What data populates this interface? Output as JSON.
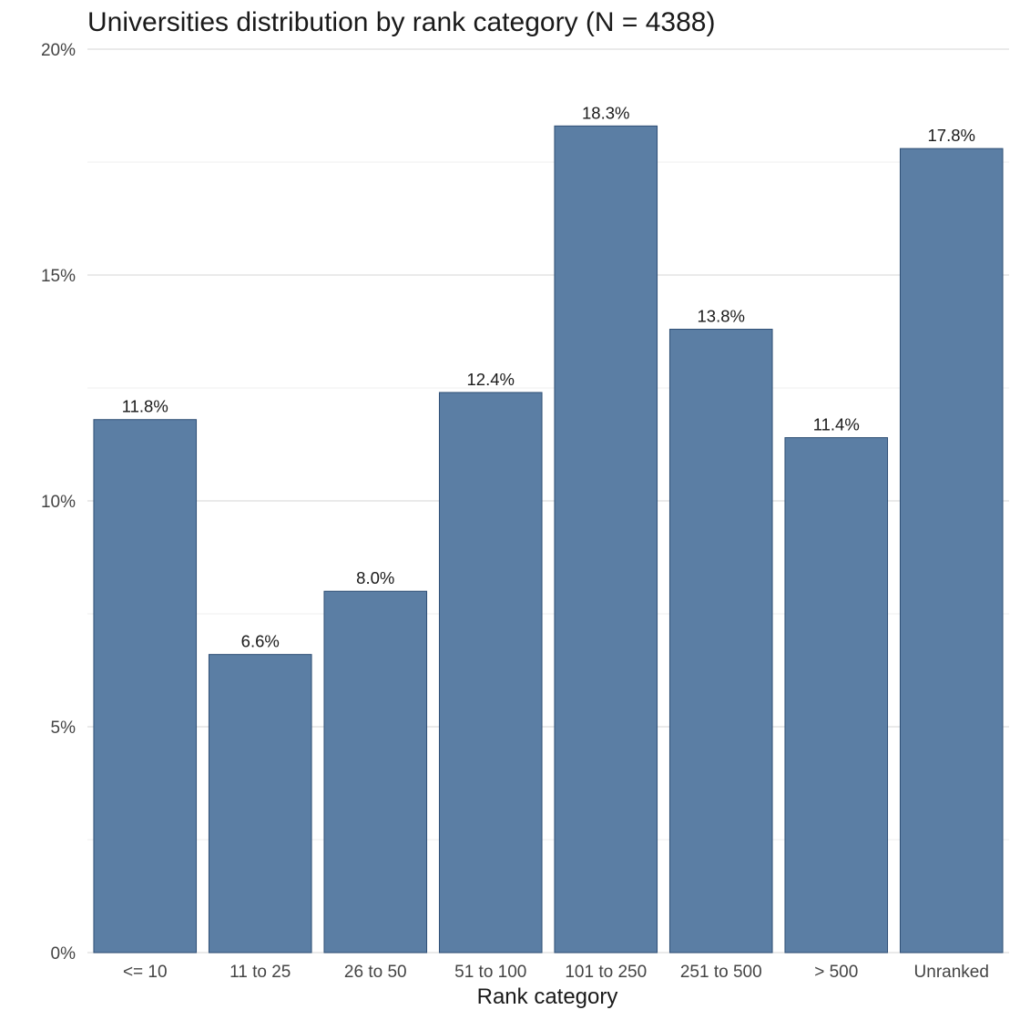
{
  "chart_data": {
    "type": "bar",
    "title": "Universities distribution by rank category (N = 4388)",
    "xlabel": "Rank category",
    "ylabel": "",
    "categories": [
      "<= 10",
      "11 to 25",
      "26 to 50",
      "51 to 100",
      "101 to 250",
      "251 to 500",
      "> 500",
      "Unranked"
    ],
    "values": [
      11.8,
      6.6,
      8.0,
      12.4,
      18.3,
      13.8,
      11.4,
      17.8
    ],
    "value_labels": [
      "11.8%",
      "6.6%",
      "8.0%",
      "12.4%",
      "18.3%",
      "13.8%",
      "11.4%",
      "17.8%"
    ],
    "ylim": [
      0,
      20
    ],
    "y_ticks": [
      0,
      5,
      10,
      15,
      20
    ],
    "y_tick_labels": [
      "0%",
      "5%",
      "10%",
      "15%",
      "20%"
    ],
    "grid": true,
    "legend": "none",
    "bar_color": "#5b7ea4"
  }
}
